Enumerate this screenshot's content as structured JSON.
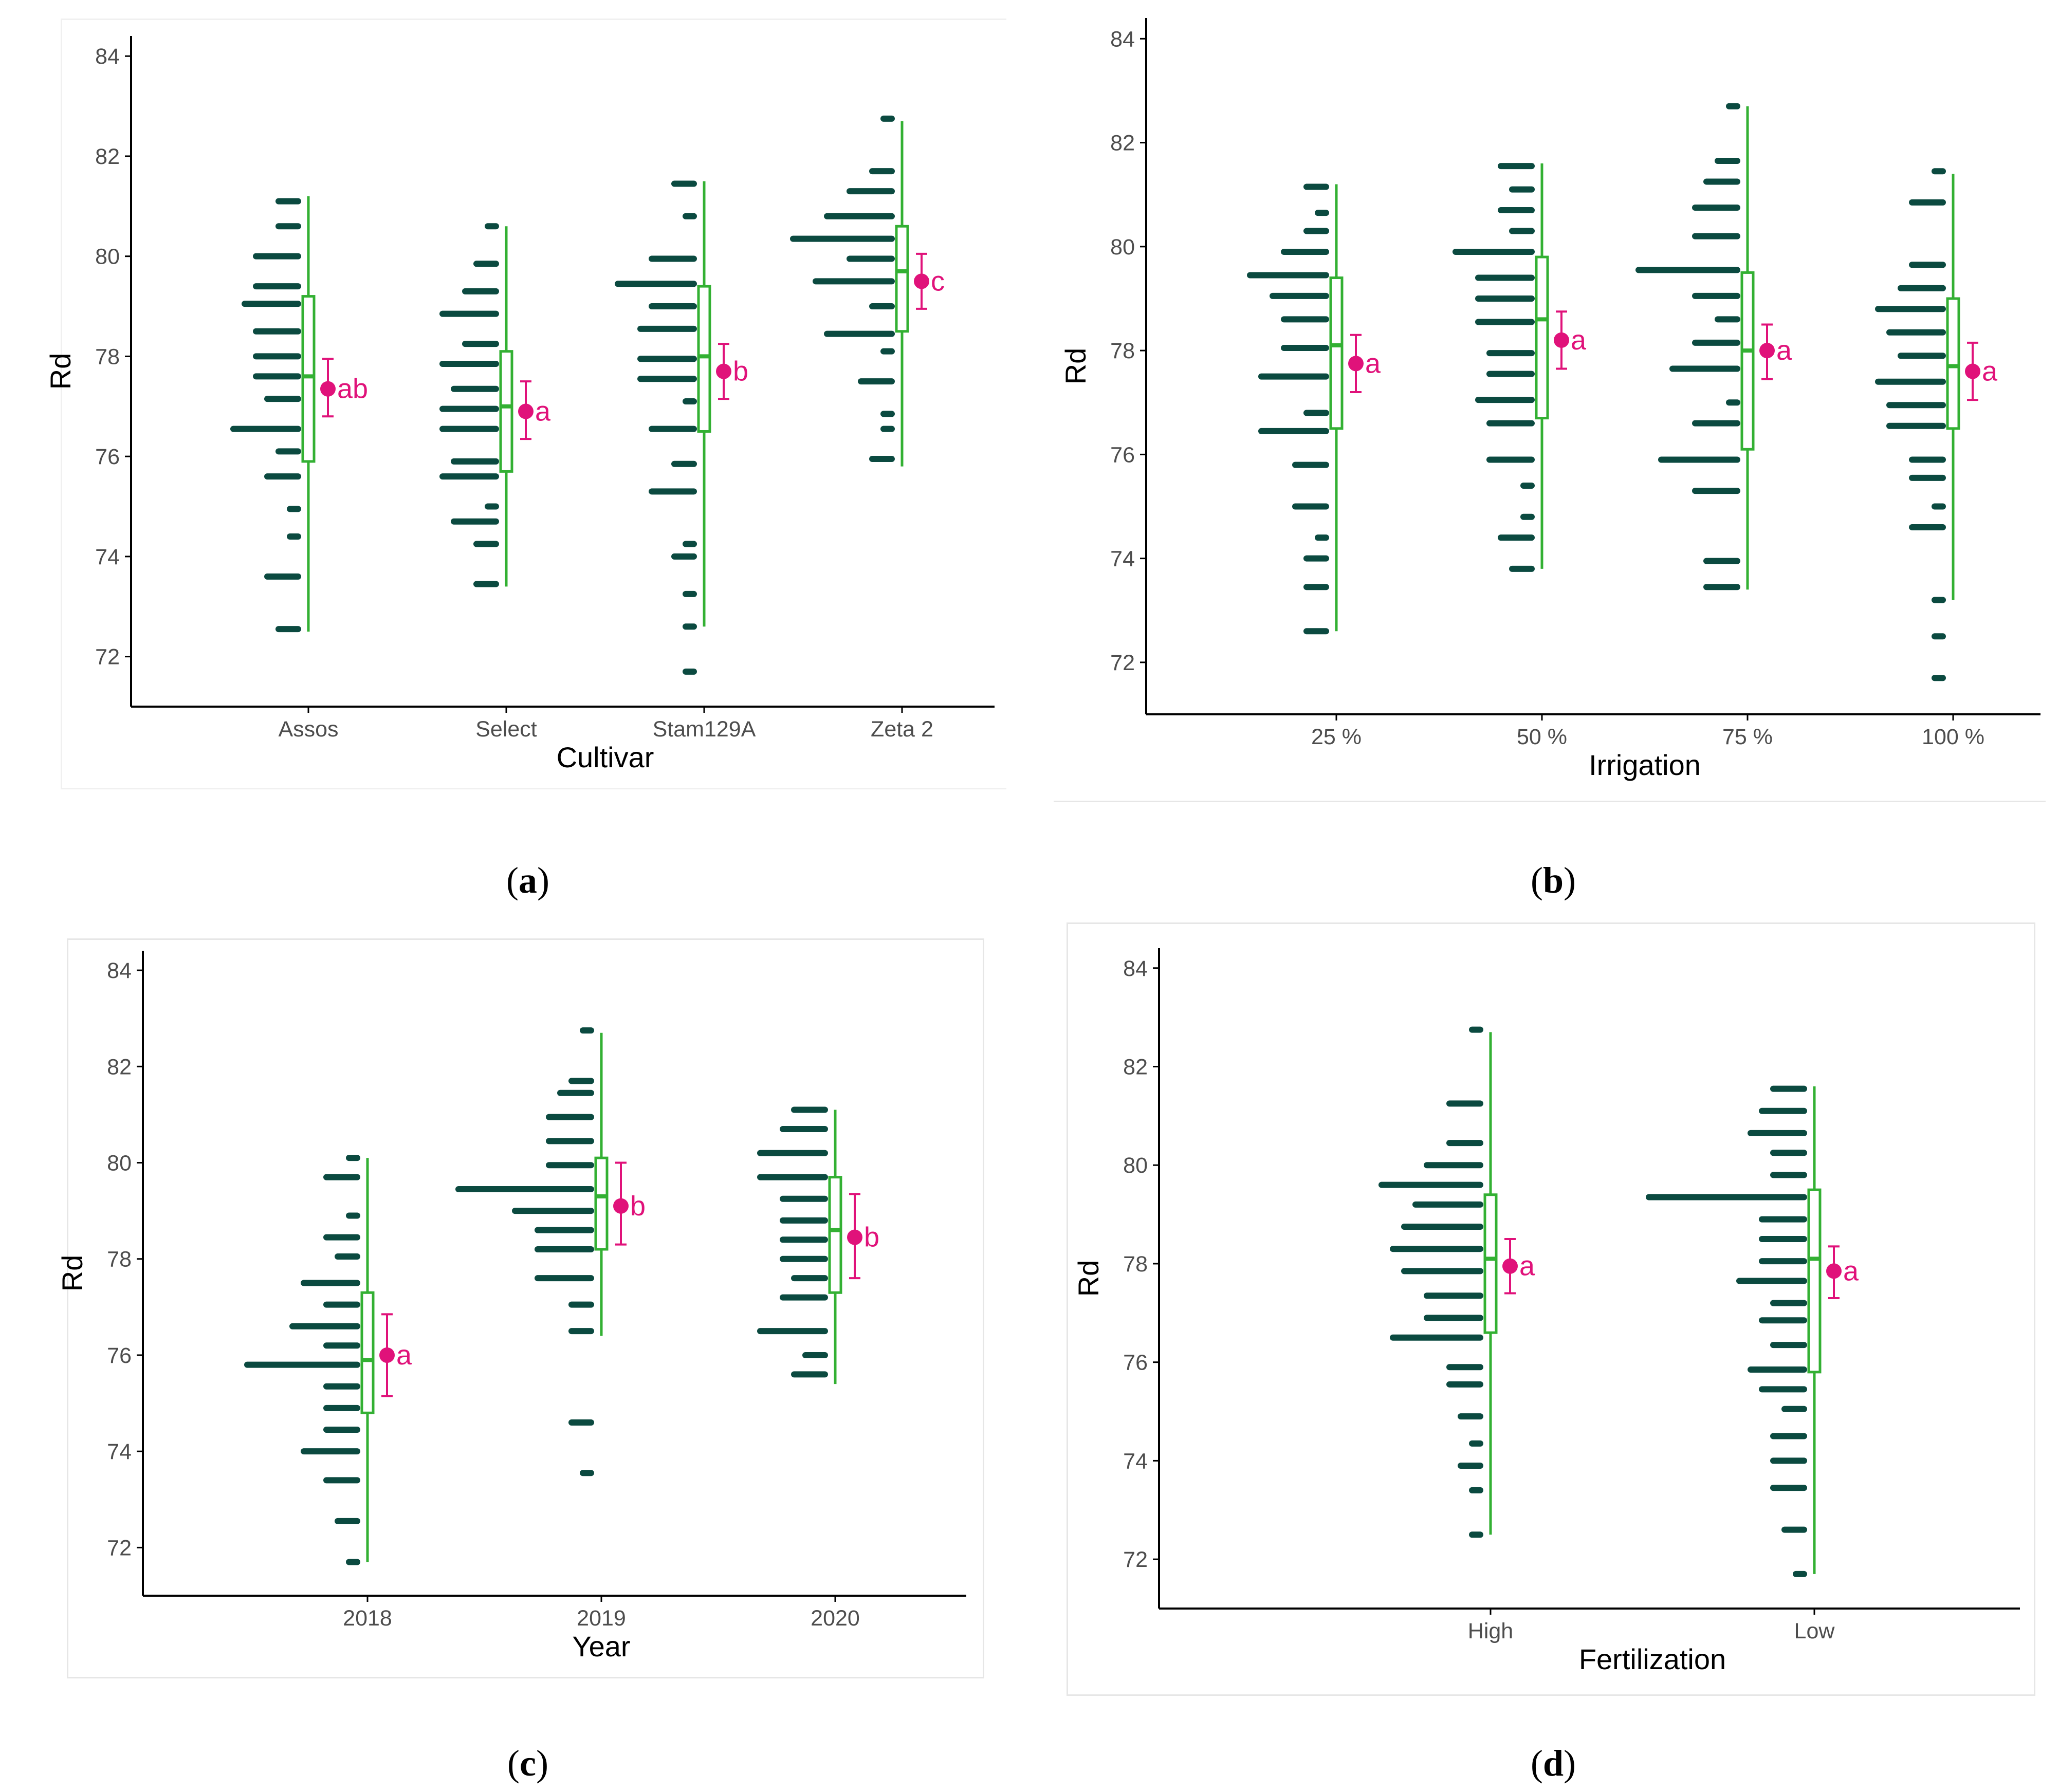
{
  "colors": {
    "dots": "#0b4a40",
    "box": "#33b033",
    "mean": "#e0127a",
    "axis": "#000000",
    "tick_text": "#4d4d4d"
  },
  "chart_data": [
    {
      "type": "box-dot",
      "caption": "a",
      "xlabel": "Cultivar",
      "ylabel": "Rd",
      "yticks": [
        "72",
        "74",
        "76",
        "78",
        "80",
        "82",
        "84"
      ],
      "ylim": [
        71,
        84.3
      ],
      "categories": [
        "Assos",
        "Select",
        "Stam129A",
        "Zeta 2"
      ],
      "groups": [
        {
          "label": "Assos",
          "min": 72.5,
          "q1": 75.9,
          "median": 77.6,
          "q3": 79.2,
          "max": 81.2,
          "mean": 77.35,
          "ci_low": 76.8,
          "ci_high": 77.95,
          "letter": "ab",
          "dots": [
            [
              72.55,
              2
            ],
            [
              73.6,
              3
            ],
            [
              74.4,
              1
            ],
            [
              74.95,
              1
            ],
            [
              75.6,
              3
            ],
            [
              76.1,
              2
            ],
            [
              76.55,
              6
            ],
            [
              77.15,
              3
            ],
            [
              77.6,
              4
            ],
            [
              78.0,
              4
            ],
            [
              78.5,
              4
            ],
            [
              79.05,
              5
            ],
            [
              79.4,
              4
            ],
            [
              80.0,
              4
            ],
            [
              80.6,
              2
            ],
            [
              81.1,
              2
            ]
          ]
        },
        {
          "label": "Select",
          "min": 73.4,
          "q1": 75.7,
          "median": 77.0,
          "q3": 78.1,
          "max": 80.6,
          "mean": 76.9,
          "ci_low": 76.35,
          "ci_high": 77.5,
          "letter": "a",
          "dots": [
            [
              73.45,
              2
            ],
            [
              74.25,
              2
            ],
            [
              74.7,
              4
            ],
            [
              75.0,
              1
            ],
            [
              75.6,
              5
            ],
            [
              75.9,
              4
            ],
            [
              76.55,
              5
            ],
            [
              76.95,
              5
            ],
            [
              77.35,
              4
            ],
            [
              77.85,
              5
            ],
            [
              78.25,
              3
            ],
            [
              78.85,
              5
            ],
            [
              79.3,
              3
            ],
            [
              79.85,
              2
            ],
            [
              80.6,
              1
            ]
          ]
        },
        {
          "label": "Stam129A",
          "min": 72.6,
          "q1": 76.5,
          "median": 78.0,
          "q3": 79.4,
          "max": 81.5,
          "mean": 77.7,
          "ci_low": 77.15,
          "ci_high": 78.25,
          "letter": "b",
          "dots": [
            [
              71.7,
              1
            ],
            [
              72.6,
              1
            ],
            [
              73.25,
              1
            ],
            [
              74.0,
              2
            ],
            [
              74.25,
              1
            ],
            [
              75.3,
              4
            ],
            [
              75.85,
              2
            ],
            [
              76.55,
              4
            ],
            [
              77.1,
              1
            ],
            [
              77.55,
              5
            ],
            [
              77.95,
              5
            ],
            [
              78.55,
              5
            ],
            [
              79.0,
              4
            ],
            [
              79.45,
              7
            ],
            [
              79.95,
              4
            ],
            [
              80.8,
              1
            ],
            [
              81.45,
              2
            ]
          ]
        },
        {
          "label": "Zeta 2",
          "min": 75.8,
          "q1": 78.5,
          "median": 79.7,
          "q3": 80.6,
          "max": 82.7,
          "mean": 79.5,
          "ci_low": 78.95,
          "ci_high": 80.05,
          "letter": "c",
          "dots": [
            [
              75.95,
              2
            ],
            [
              76.55,
              1
            ],
            [
              76.85,
              1
            ],
            [
              77.5,
              3
            ],
            [
              78.1,
              1
            ],
            [
              78.45,
              6
            ],
            [
              79.0,
              2
            ],
            [
              79.5,
              7
            ],
            [
              79.95,
              4
            ],
            [
              80.35,
              9
            ],
            [
              80.8,
              6
            ],
            [
              81.3,
              4
            ],
            [
              81.7,
              2
            ],
            [
              82.75,
              1
            ]
          ]
        }
      ]
    },
    {
      "type": "box-dot",
      "caption": "b",
      "xlabel": "Irrigation",
      "ylabel": "Rd",
      "yticks": [
        "72",
        "74",
        "76",
        "78",
        "80",
        "82",
        "84"
      ],
      "ylim": [
        71,
        84.3
      ],
      "categories": [
        "25 %",
        "50 %",
        "75 %",
        "100 %"
      ],
      "groups": [
        {
          "label": "25 %",
          "min": 72.6,
          "q1": 76.5,
          "median": 78.1,
          "q3": 79.4,
          "max": 81.2,
          "mean": 77.75,
          "ci_low": 77.2,
          "ci_high": 78.3,
          "letter": "a",
          "dots": [
            [
              72.6,
              2
            ],
            [
              73.45,
              2
            ],
            [
              74.0,
              2
            ],
            [
              74.4,
              1
            ],
            [
              75.0,
              3
            ],
            [
              75.8,
              3
            ],
            [
              76.45,
              6
            ],
            [
              76.8,
              2
            ],
            [
              77.5,
              6
            ],
            [
              78.05,
              4
            ],
            [
              78.6,
              4
            ],
            [
              79.05,
              5
            ],
            [
              79.45,
              7
            ],
            [
              79.9,
              4
            ],
            [
              80.3,
              2
            ],
            [
              80.65,
              1
            ],
            [
              81.15,
              2
            ]
          ]
        },
        {
          "label": "50 %",
          "min": 73.8,
          "q1": 76.7,
          "median": 78.6,
          "q3": 79.8,
          "max": 81.6,
          "mean": 78.2,
          "ci_low": 77.65,
          "ci_high": 78.75,
          "letter": "a",
          "dots": [
            [
              73.8,
              2
            ],
            [
              74.4,
              3
            ],
            [
              74.8,
              1
            ],
            [
              75.4,
              1
            ],
            [
              75.9,
              4
            ],
            [
              76.6,
              4
            ],
            [
              77.05,
              5
            ],
            [
              77.55,
              4
            ],
            [
              77.95,
              4
            ],
            [
              78.55,
              5
            ],
            [
              79.0,
              5
            ],
            [
              79.4,
              5
            ],
            [
              79.9,
              7
            ],
            [
              80.3,
              2
            ],
            [
              80.7,
              3
            ],
            [
              81.1,
              2
            ],
            [
              81.55,
              3
            ]
          ]
        },
        {
          "label": "75 %",
          "min": 73.4,
          "q1": 76.1,
          "median": 78.0,
          "q3": 79.5,
          "max": 82.7,
          "mean": 78.0,
          "ci_low": 77.45,
          "ci_high": 78.5,
          "letter": "a",
          "dots": [
            [
              73.45,
              3
            ],
            [
              73.95,
              3
            ],
            [
              75.3,
              4
            ],
            [
              75.9,
              7
            ],
            [
              76.6,
              4
            ],
            [
              77.0,
              1
            ],
            [
              77.65,
              6
            ],
            [
              78.15,
              4
            ],
            [
              78.6,
              2
            ],
            [
              79.05,
              4
            ],
            [
              79.55,
              9
            ],
            [
              80.2,
              4
            ],
            [
              80.75,
              4
            ],
            [
              81.25,
              3
            ],
            [
              81.65,
              2
            ],
            [
              82.7,
              1
            ]
          ]
        },
        {
          "label": "100 %",
          "min": 73.2,
          "q1": 76.5,
          "median": 77.7,
          "q3": 79.0,
          "max": 81.4,
          "mean": 77.6,
          "ci_low": 77.05,
          "ci_high": 78.15,
          "letter": "a",
          "dots": [
            [
              71.7,
              1
            ],
            [
              72.5,
              1
            ],
            [
              73.2,
              1
            ],
            [
              74.6,
              3
            ],
            [
              75.0,
              1
            ],
            [
              75.55,
              3
            ],
            [
              75.9,
              3
            ],
            [
              76.55,
              5
            ],
            [
              76.95,
              5
            ],
            [
              77.4,
              6
            ],
            [
              77.9,
              4
            ],
            [
              78.35,
              5
            ],
            [
              78.8,
              6
            ],
            [
              79.2,
              4
            ],
            [
              79.65,
              3
            ],
            [
              80.85,
              3
            ],
            [
              81.45,
              1
            ]
          ]
        }
      ]
    },
    {
      "type": "box-dot",
      "caption": "c",
      "xlabel": "Year",
      "ylabel": "Rd",
      "yticks": [
        "72",
        "74",
        "76",
        "78",
        "80",
        "82",
        "84"
      ],
      "ylim": [
        71,
        84.3
      ],
      "categories": [
        "2018",
        "2019",
        "2020"
      ],
      "groups": [
        {
          "label": "2018",
          "min": 71.7,
          "q1": 74.8,
          "median": 75.9,
          "q3": 77.3,
          "max": 80.1,
          "mean": 76.0,
          "ci_low": 75.15,
          "ci_high": 76.85,
          "letter": "a",
          "dots": [
            [
              71.7,
              1
            ],
            [
              72.55,
              2
            ],
            [
              73.4,
              3
            ],
            [
              74.0,
              5
            ],
            [
              74.45,
              3
            ],
            [
              74.9,
              3
            ],
            [
              75.35,
              3
            ],
            [
              75.8,
              10
            ],
            [
              76.2,
              3
            ],
            [
              76.6,
              6
            ],
            [
              77.05,
              3
            ],
            [
              77.5,
              5
            ],
            [
              78.05,
              2
            ],
            [
              78.45,
              3
            ],
            [
              78.9,
              1
            ],
            [
              79.7,
              3
            ],
            [
              80.1,
              1
            ]
          ]
        },
        {
          "label": "2019",
          "min": 76.4,
          "q1": 78.2,
          "median": 79.3,
          "q3": 80.1,
          "max": 82.7,
          "mean": 79.1,
          "ci_low": 78.3,
          "ci_high": 80.0,
          "letter": "b",
          "dots": [
            [
              73.55,
              1
            ],
            [
              74.6,
              2
            ],
            [
              76.5,
              2
            ],
            [
              77.05,
              2
            ],
            [
              77.6,
              5
            ],
            [
              78.2,
              5
            ],
            [
              78.6,
              5
            ],
            [
              79.0,
              7
            ],
            [
              79.45,
              12
            ],
            [
              79.95,
              4
            ],
            [
              80.45,
              4
            ],
            [
              80.95,
              4
            ],
            [
              81.45,
              3
            ],
            [
              81.7,
              2
            ],
            [
              82.75,
              1
            ]
          ]
        },
        {
          "label": "2020",
          "min": 75.4,
          "q1": 77.3,
          "median": 78.6,
          "q3": 79.7,
          "max": 81.1,
          "mean": 78.45,
          "ci_low": 77.6,
          "ci_high": 79.35,
          "letter": "b",
          "dots": [
            [
              75.6,
              3
            ],
            [
              76.0,
              2
            ],
            [
              76.5,
              6
            ],
            [
              77.2,
              4
            ],
            [
              77.6,
              3
            ],
            [
              78.0,
              4
            ],
            [
              78.4,
              4
            ],
            [
              78.8,
              4
            ],
            [
              79.25,
              4
            ],
            [
              79.7,
              6
            ],
            [
              80.2,
              6
            ],
            [
              80.7,
              4
            ],
            [
              81.1,
              3
            ]
          ]
        }
      ]
    },
    {
      "type": "box-dot",
      "caption": "d",
      "xlabel": "Fertilization",
      "ylabel": "Rd",
      "yticks": [
        "72",
        "74",
        "76",
        "78",
        "80",
        "82",
        "84"
      ],
      "ylim": [
        71,
        84.3
      ],
      "categories": [
        "High",
        "Low"
      ],
      "groups": [
        {
          "label": "High",
          "min": 72.5,
          "q1": 76.6,
          "median": 78.1,
          "q3": 79.4,
          "max": 82.7,
          "mean": 77.95,
          "ci_low": 77.4,
          "ci_high": 78.5,
          "letter": "a",
          "dots": [
            [
              72.5,
              1
            ],
            [
              73.4,
              1
            ],
            [
              73.9,
              2
            ],
            [
              74.35,
              1
            ],
            [
              74.9,
              2
            ],
            [
              75.55,
              3
            ],
            [
              75.9,
              3
            ],
            [
              76.5,
              8
            ],
            [
              76.9,
              5
            ],
            [
              77.35,
              5
            ],
            [
              77.85,
              7
            ],
            [
              78.3,
              8
            ],
            [
              78.75,
              7
            ],
            [
              79.2,
              6
            ],
            [
              79.6,
              9
            ],
            [
              80.0,
              5
            ],
            [
              80.45,
              3
            ],
            [
              81.25,
              3
            ],
            [
              82.75,
              1
            ]
          ]
        },
        {
          "label": "Low",
          "min": 71.7,
          "q1": 75.8,
          "median": 78.1,
          "q3": 79.5,
          "max": 81.6,
          "mean": 77.85,
          "ci_low": 77.3,
          "ci_high": 78.35,
          "letter": "a",
          "dots": [
            [
              71.7,
              1
            ],
            [
              72.6,
              2
            ],
            [
              73.45,
              3
            ],
            [
              74.0,
              3
            ],
            [
              74.5,
              3
            ],
            [
              75.05,
              2
            ],
            [
              75.45,
              4
            ],
            [
              75.85,
              5
            ],
            [
              76.35,
              3
            ],
            [
              76.85,
              4
            ],
            [
              77.2,
              3
            ],
            [
              77.65,
              6
            ],
            [
              78.05,
              4
            ],
            [
              78.5,
              4
            ],
            [
              78.9,
              4
            ],
            [
              79.35,
              14
            ],
            [
              79.8,
              3
            ],
            [
              80.25,
              3
            ],
            [
              80.65,
              5
            ],
            [
              81.1,
              4
            ],
            [
              81.55,
              3
            ]
          ]
        }
      ]
    }
  ]
}
